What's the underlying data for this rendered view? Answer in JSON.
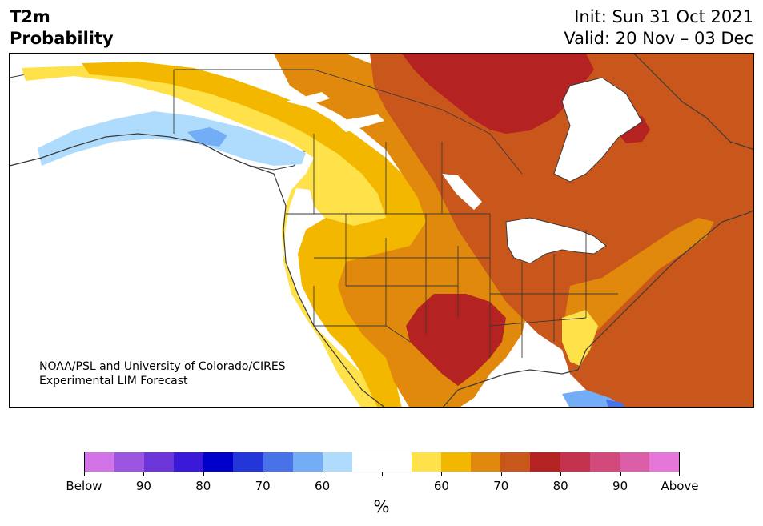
{
  "header": {
    "title_line1": "T2m",
    "title_line2": "Probability",
    "init": "Init: Sun 31 Oct 2021",
    "valid": "Valid: 20 Nov – 03 Dec"
  },
  "credit": {
    "line1": "NOAA/PSL and University of Colorado/CIRES",
    "line2": "Experimental LIM Forecast"
  },
  "colorbar": {
    "unit": "%",
    "colors": [
      "#d373e8",
      "#9b55e2",
      "#6d36da",
      "#3a19d8",
      "#0000cd",
      "#2336d9",
      "#4a72e8",
      "#72adf5",
      "#afdcfd",
      "#ffffff",
      "#ffffff",
      "#ffe14a",
      "#f4b700",
      "#e0890c",
      "#c9561a",
      "#b42222",
      "#c53250",
      "#d24a7c",
      "#dc5ea8",
      "#e676d8"
    ],
    "labels": [
      "Below",
      "90",
      "80",
      "70",
      "60",
      "",
      "60",
      "70",
      "80",
      "90",
      "Above"
    ]
  },
  "map": {
    "colors": {
      "land_white": "#ffffff",
      "light_blue": "#afdcfd",
      "mid_blue": "#72adf5",
      "blue": "#4a72e8",
      "yellow": "#ffe14a",
      "gold": "#f4b700",
      "orange": "#e0890c",
      "dark_orange": "#c9561a",
      "red": "#b42222",
      "coast": "#3a3a3a"
    }
  }
}
